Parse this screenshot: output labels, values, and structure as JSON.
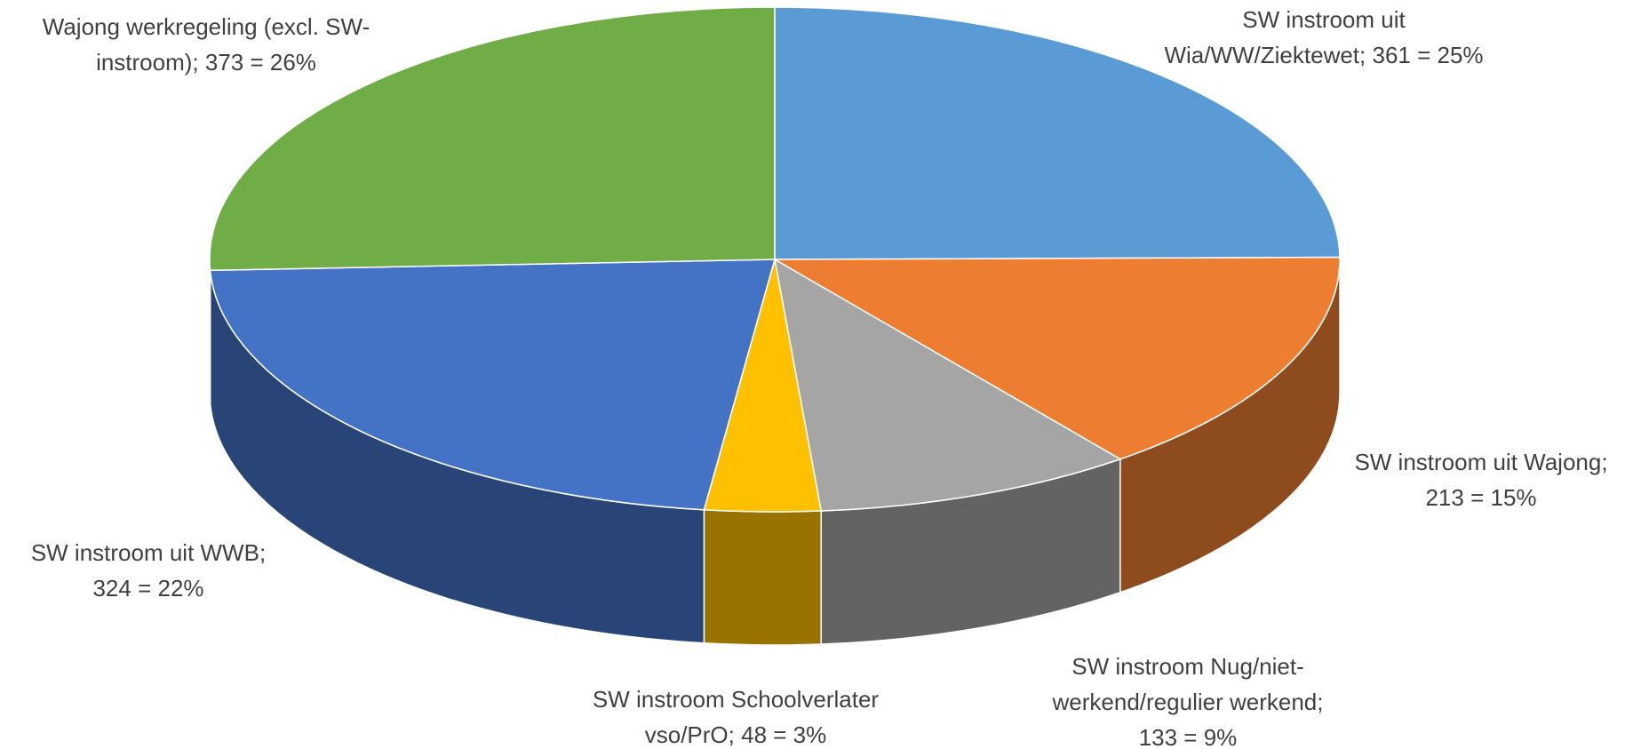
{
  "chart_data": {
    "type": "pie3d",
    "categories": [
      "SW instroom uit Wia/WW/Ziektewet",
      "SW instroom uit Wajong",
      "SW instroom Nug/niet-werkend/regulier werkend",
      "SW instroom Schoolverlater vso/PrO",
      "SW instroom uit  WWB",
      "Wajong werkregeling (excl. SW-instroom)"
    ],
    "values": [
      361,
      213,
      133,
      48,
      324,
      373
    ],
    "value_labels": [
      [
        "SW instroom uit",
        "Wia/WW/Ziektewet; 361 =  25%"
      ],
      [
        "SW instroom uit Wajong;",
        "213 = 15%"
      ],
      [
        "SW instroom Nug/niet-",
        "werkend/regulier werkend;",
        "133 = 9%"
      ],
      [
        "SW instroom Schoolverlater",
        "vso/PrO; 48 = 3%"
      ],
      [
        "SW instroom uit  WWB;",
        "324 = 22%"
      ],
      [
        "Wajong werkregeling (excl. SW-",
        "instroom); 373 = 26%"
      ]
    ],
    "colors": [
      "#5b9bd5",
      "#ed7d31",
      "#a5a5a5",
      "#ffc000",
      "#4472c4",
      "#70ad47"
    ]
  }
}
